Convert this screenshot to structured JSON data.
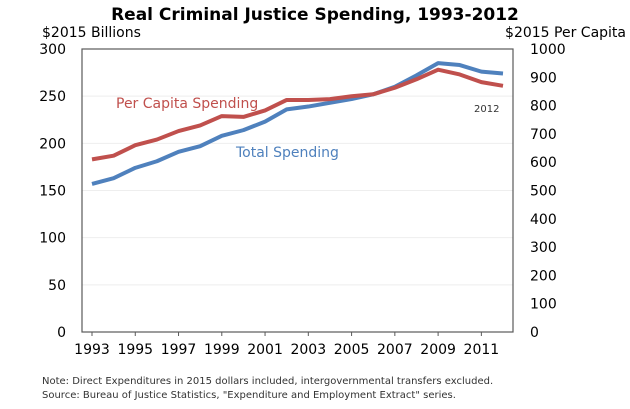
{
  "chart_data": {
    "type": "line",
    "title": "Real Criminal Justice Spending, 1993-2012",
    "left_axis_label": "$2015 Billions",
    "right_axis_label": "$2015 Per Capita",
    "x": [
      1993,
      1994,
      1995,
      1996,
      1997,
      1998,
      1999,
      2000,
      2001,
      2002,
      2003,
      2004,
      2005,
      2006,
      2007,
      2008,
      2009,
      2010,
      2011,
      2012
    ],
    "xticks": [
      "1993",
      "1995",
      "1997",
      "1999",
      "2001",
      "2003",
      "2005",
      "2007",
      "2009",
      "2011"
    ],
    "ylim_left": [
      0,
      300
    ],
    "yticks_left": [
      "0",
      "50",
      "100",
      "150",
      "200",
      "250",
      "300"
    ],
    "ylim_right": [
      0,
      1000
    ],
    "yticks_right": [
      "0",
      "100",
      "200",
      "300",
      "400",
      "500",
      "600",
      "700",
      "800",
      "900",
      "1000"
    ],
    "grid": true,
    "series": [
      {
        "name": "Total Spending",
        "axis": "left",
        "color": "#4f81bd",
        "values": [
          157,
          163,
          174,
          181,
          191,
          197,
          208,
          214,
          223,
          236,
          239,
          243,
          247,
          252,
          260,
          272,
          285,
          283,
          276,
          274
        ]
      },
      {
        "name": "Per Capita Spending",
        "axis": "right",
        "color": "#c0504d",
        "values": [
          610,
          623,
          660,
          680,
          710,
          730,
          763,
          760,
          783,
          820,
          820,
          823,
          833,
          840,
          863,
          893,
          927,
          910,
          883,
          870
        ]
      }
    ],
    "annotations": [
      "2012"
    ],
    "notes": [
      "Note: Direct Expenditures in 2015 dollars included, intergovernmental transfers excluded.",
      "Source: Bureau of Justice Statistics, \"Expenditure and Employment Extract\" series."
    ]
  }
}
